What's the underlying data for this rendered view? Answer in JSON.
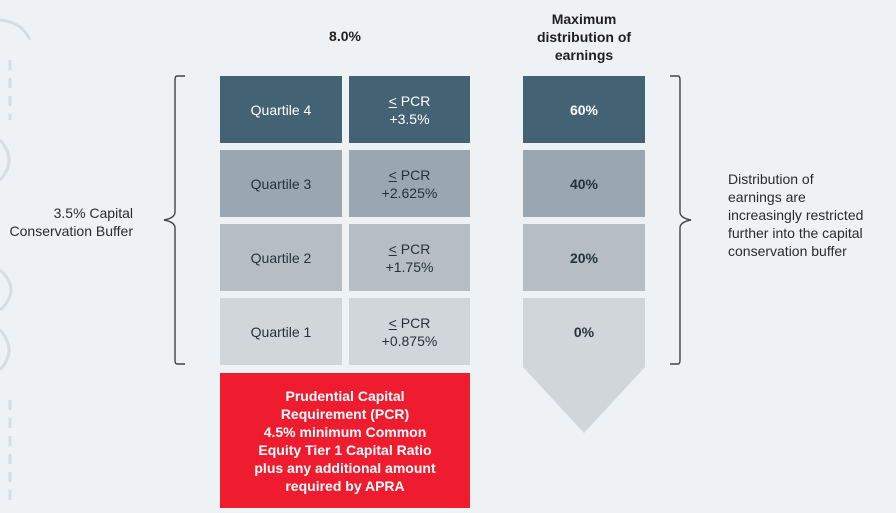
{
  "header": {
    "col_rate": "8.0%",
    "col_max_line1": "Maximum",
    "col_max_line2": "distribution of",
    "col_max_line3": "earnings"
  },
  "left_note": {
    "line1": "3.5% Capital",
    "line2": "Conservation Buffer"
  },
  "right_note": {
    "line1": "Distribution of",
    "line2": "earnings are",
    "line3": "increasingly restricted",
    "line4": "further into the capital",
    "line5": "conservation buffer"
  },
  "rows": [
    {
      "quartile": "Quartile 4",
      "le": "<",
      "pcr": " PCR",
      "plus": "+3.5%",
      "max": "60%"
    },
    {
      "quartile": "Quartile 3",
      "le": "<",
      "pcr": " PCR",
      "plus": "+2.625%",
      "max": "40%"
    },
    {
      "quartile": "Quartile 2",
      "le": "<",
      "pcr": " PCR",
      "plus": "+1.75%",
      "max": "20%"
    },
    {
      "quartile": "Quartile 1",
      "le": "<",
      "pcr": " PCR",
      "plus": "+0.875%",
      "max": "0%"
    }
  ],
  "pcr_box": {
    "line1": "Prudential Capital",
    "line2": "Requirement (PCR)",
    "line3": "4.5% minimum Common",
    "line4": "Equity Tier 1 Capital Ratio",
    "line5": "plus any additional amount",
    "line6": "required by APRA"
  },
  "colors": {
    "dark": "#436274",
    "mid": "#9aa7b0",
    "mid2": "#b6bec4",
    "light": "#d1d6da",
    "red": "#ee1c2e",
    "background": "#eef2f5"
  }
}
